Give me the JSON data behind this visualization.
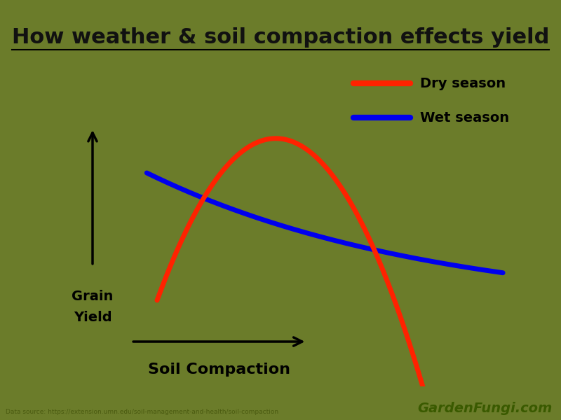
{
  "title": "How weather & soil compaction effects yield",
  "background_color": "#6b7c2a",
  "title_fontsize": 22,
  "title_color": "#111111",
  "xlabel": "Soil Compaction",
  "ylabel_line1": "Grain",
  "ylabel_line2": "Yield",
  "xlabel_fontsize": 16,
  "ylabel_fontsize": 14,
  "dry_color": "#ff2200",
  "wet_color": "#0000ee",
  "dry_label": "Dry season",
  "wet_label": "Wet season",
  "legend_fontsize": 14,
  "source_text": "Data source: https://extension.umn.edu/soil-management-and-health/soil-compaction",
  "brand_text": "GardenFungi.com",
  "line_width": 4,
  "source_color": "#4a5a10",
  "brand_color": "#3a5a00"
}
